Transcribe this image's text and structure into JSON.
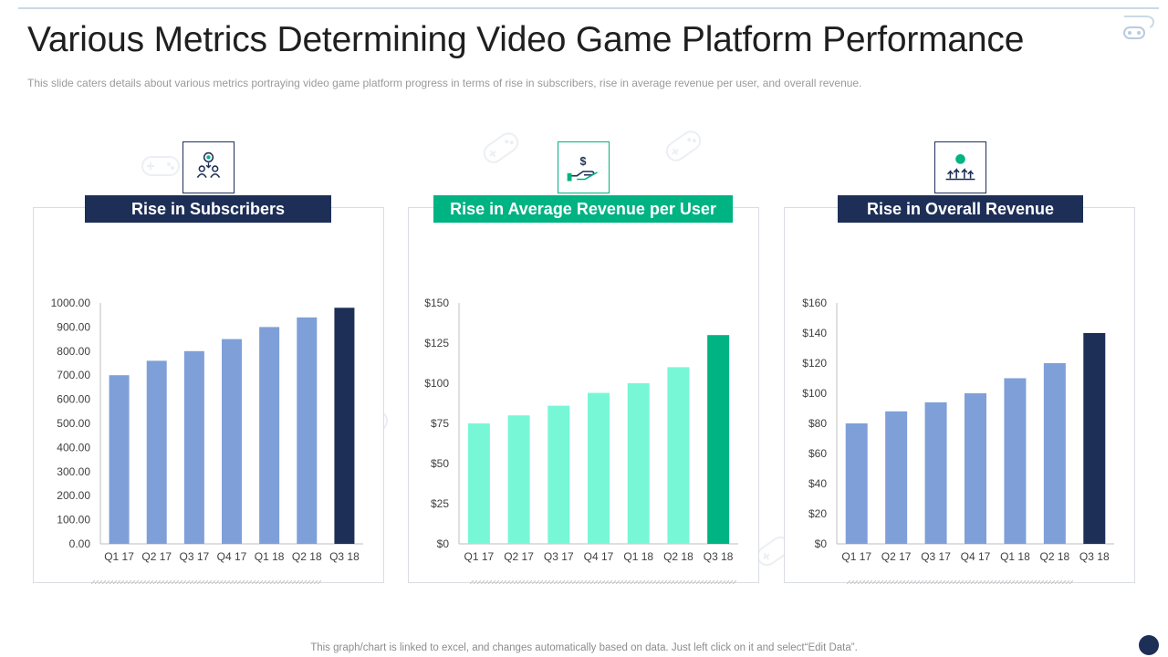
{
  "slide": {
    "title": "Various Metrics Determining Video Game Platform Performance",
    "subtitle": "This slide caters details about various  metrics portraying video game platform progress in terms of rise in subscribers, rise in average  revenue  per user, and overall  revenue.",
    "footer": "This graph/chart is linked to excel,  and changes automatically based on data. Just left click on it and select“Edit Data”."
  },
  "colors": {
    "navy": "#1e2f57",
    "teal": "#00b383",
    "blue_bar": "#7f9fd8",
    "mint_bar": "#78f7d6"
  },
  "panels": [
    {
      "heading": "Rise in Subscribers",
      "icon": "subscribers-icon",
      "header_color": "#1e2f57"
    },
    {
      "heading": "Rise in Average Revenue per User",
      "icon": "dollar-hand-icon",
      "header_color": "#00b383"
    },
    {
      "heading": "Rise in Overall Revenue",
      "icon": "revenue-growth-icon",
      "header_color": "#1e2f57"
    }
  ],
  "chart_data": [
    {
      "type": "bar",
      "title": "Rise in Subscribers",
      "categories": [
        "Q1 17",
        "Q2 17",
        "Q3 17",
        "Q4 17",
        "Q1 18",
        "Q2 18",
        "Q3 18"
      ],
      "values": [
        700,
        760,
        800,
        850,
        900,
        940,
        980
      ],
      "ylim": [
        0,
        1000
      ],
      "yticks": [
        "0.00",
        "100.00",
        "200.00",
        "300.00",
        "400.00",
        "500.00",
        "600.00",
        "700.00",
        "800.00",
        "900.00",
        "1000.00"
      ],
      "bar_color": "#7f9fd8",
      "highlight_color": "#1e2f57",
      "grid": false
    },
    {
      "type": "bar",
      "title": "Rise in Average Revenue per User",
      "categories": [
        "Q1 17",
        "Q2 17",
        "Q3 17",
        "Q4 17",
        "Q1 18",
        "Q2 18",
        "Q3 18"
      ],
      "values": [
        75,
        80,
        86,
        94,
        100,
        110,
        130
      ],
      "ylim": [
        0,
        150
      ],
      "yticks": [
        "$0",
        "$25",
        "$50",
        "$75",
        "$100",
        "$125",
        "$150"
      ],
      "bar_color": "#78f7d6",
      "highlight_color": "#00b383",
      "grid": false
    },
    {
      "type": "bar",
      "title": "Rise in Overall Revenue",
      "categories": [
        "Q1 17",
        "Q2 17",
        "Q3 17",
        "Q4 17",
        "Q1 18",
        "Q2 18",
        "Q3 18"
      ],
      "values": [
        80,
        88,
        94,
        100,
        110,
        120,
        140
      ],
      "ylim": [
        0,
        160
      ],
      "yticks": [
        "$0",
        "$20",
        "$40",
        "$60",
        "$80",
        "$100",
        "$120",
        "$140",
        "$160"
      ],
      "bar_color": "#7f9fd8",
      "highlight_color": "#1e2f57",
      "grid": false
    }
  ]
}
